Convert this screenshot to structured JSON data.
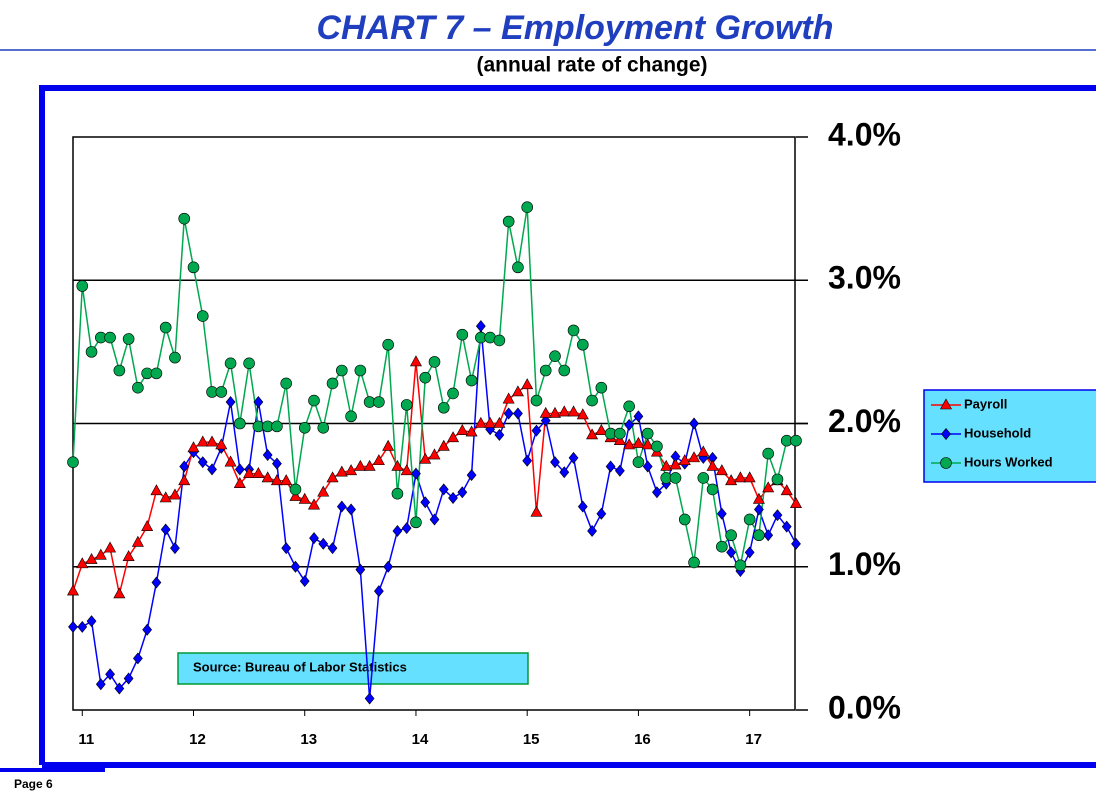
{
  "chart_data": {
    "type": "line",
    "title": "CHART 7 – Employment Growth",
    "subtitle": "(annual rate of change)",
    "annotation": "Source:  Bureau of Labor Statistics",
    "page_label": "Page 6",
    "categories": [
      null,
      "11",
      null,
      null,
      null,
      null,
      null,
      null,
      null,
      null,
      null,
      null,
      null,
      "12",
      null,
      null,
      null,
      null,
      null,
      null,
      null,
      null,
      null,
      null,
      null,
      "13",
      null,
      null,
      null,
      null,
      null,
      null,
      null,
      null,
      null,
      null,
      null,
      "14",
      null,
      null,
      null,
      null,
      null,
      null,
      null,
      null,
      null,
      null,
      null,
      "15",
      null,
      null,
      null,
      null,
      null,
      null,
      null,
      null,
      null,
      null,
      null,
      "16",
      null,
      null,
      null,
      null,
      null,
      null,
      null,
      null,
      null,
      null,
      null,
      "17",
      null,
      null,
      null,
      null,
      null
    ],
    "ylim": [
      0,
      4
    ],
    "yticks": [
      {
        "value": 0,
        "label": "0.0%"
      },
      {
        "value": 1,
        "label": "1.0%"
      },
      {
        "value": 2,
        "label": "2.0%"
      },
      {
        "value": 3,
        "label": "3.0%"
      },
      {
        "value": 4,
        "label": "4.0%"
      }
    ],
    "grid": true,
    "legend": "right",
    "series": [
      {
        "name": "Payroll",
        "color": "#ff0000",
        "marker": "triangle",
        "values": [
          0.83,
          1.02,
          1.05,
          1.08,
          1.13,
          0.81,
          1.07,
          1.17,
          1.28,
          1.53,
          1.48,
          1.5,
          1.6,
          1.83,
          1.87,
          1.87,
          1.85,
          1.73,
          1.58,
          1.65,
          1.65,
          1.62,
          1.6,
          1.6,
          1.49,
          1.47,
          1.43,
          1.52,
          1.62,
          1.66,
          1.67,
          1.7,
          1.7,
          1.74,
          1.84,
          1.7,
          1.67,
          2.43,
          1.75,
          1.78,
          1.84,
          1.9,
          1.95,
          1.94,
          2.0,
          2.0,
          2.0,
          2.17,
          2.22,
          2.27,
          1.38,
          2.07,
          2.07,
          2.08,
          2.08,
          2.06,
          1.92,
          1.95,
          1.9,
          1.88,
          1.85,
          1.86,
          1.85,
          1.8,
          1.7,
          1.71,
          1.74,
          1.76,
          1.8,
          1.7,
          1.67,
          1.6,
          1.62,
          1.62,
          1.47,
          1.55,
          1.6,
          1.53,
          1.44
        ]
      },
      {
        "name": "Household",
        "color": "#0000ff",
        "marker": "diamond",
        "values": [
          0.58,
          0.58,
          0.62,
          0.18,
          0.25,
          0.15,
          0.22,
          0.36,
          0.56,
          0.89,
          1.26,
          1.13,
          1.7,
          1.8,
          1.73,
          1.68,
          1.83,
          2.15,
          1.68,
          1.68,
          2.15,
          1.78,
          1.72,
          1.13,
          1.0,
          0.9,
          1.2,
          1.16,
          1.13,
          1.42,
          1.4,
          0.98,
          0.08,
          0.83,
          1.0,
          1.25,
          1.27,
          1.65,
          1.45,
          1.33,
          1.54,
          1.48,
          1.52,
          1.64,
          2.68,
          1.96,
          1.92,
          2.07,
          2.07,
          1.74,
          1.95,
          2.02,
          1.73,
          1.66,
          1.76,
          1.42,
          1.25,
          1.37,
          1.7,
          1.67,
          1.99,
          2.05,
          1.7,
          1.52,
          1.58,
          1.77,
          1.72,
          2.0,
          1.76,
          1.76,
          1.37,
          1.1,
          0.97,
          1.1,
          1.4,
          1.22,
          1.36,
          1.28,
          1.16
        ]
      },
      {
        "name": "Hours Worked",
        "color": "#00a850",
        "marker": "circle",
        "values": [
          1.73,
          2.96,
          2.5,
          2.6,
          2.6,
          2.37,
          2.59,
          2.25,
          2.35,
          2.35,
          2.67,
          2.46,
          3.43,
          3.09,
          2.75,
          2.22,
          2.22,
          2.42,
          2.0,
          2.42,
          1.98,
          1.98,
          1.98,
          2.28,
          1.54,
          1.97,
          2.16,
          1.97,
          2.28,
          2.37,
          2.05,
          2.37,
          2.15,
          2.15,
          2.55,
          1.51,
          2.13,
          1.31,
          2.32,
          2.43,
          2.11,
          2.21,
          2.62,
          2.3,
          2.6,
          2.6,
          2.58,
          3.41,
          3.09,
          3.51,
          2.16,
          2.37,
          2.47,
          2.37,
          2.65,
          2.55,
          2.16,
          2.25,
          1.93,
          1.93,
          2.12,
          1.73,
          1.93,
          1.84,
          1.62,
          1.62,
          1.33,
          1.03,
          1.62,
          1.54,
          1.14,
          1.22,
          1.01,
          1.33,
          1.22,
          1.79,
          1.61,
          1.88,
          1.88
        ]
      }
    ]
  }
}
